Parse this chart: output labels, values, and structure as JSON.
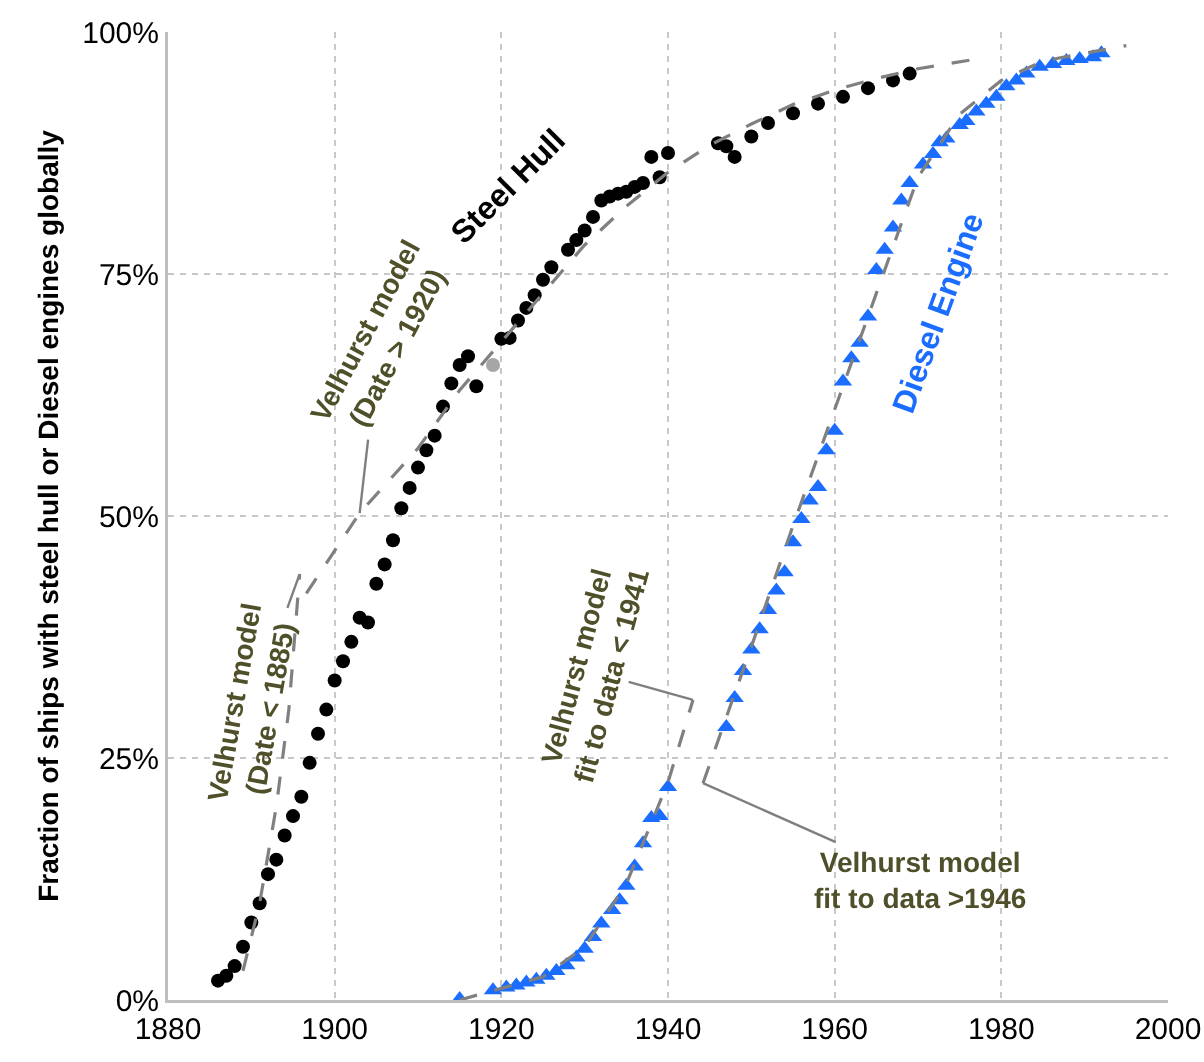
{
  "chart_data": {
    "type": "scatter",
    "ylabel": "Fraction of ships with steel hull or Diesel engines globally",
    "xlim": [
      1880,
      2000
    ],
    "xticks": [
      1880,
      1900,
      1920,
      1940,
      1960,
      1980,
      2000
    ],
    "ylim": [
      0,
      100
    ],
    "yticks": [
      {
        "value": 0,
        "label": "0%"
      },
      {
        "value": 25,
        "label": "25%"
      },
      {
        "value": 50,
        "label": "50%"
      },
      {
        "value": 75,
        "label": "75%"
      },
      {
        "value": 100,
        "label": "100%"
      }
    ],
    "grid": true,
    "legend": false,
    "series": [
      {
        "name": "Steel Hull",
        "color": "#000000",
        "marker": "circle",
        "x": [
          1886,
          1887,
          1888,
          1889,
          1890,
          1891,
          1892,
          1893,
          1894,
          1895,
          1896,
          1897,
          1898,
          1899,
          1900,
          1901,
          1902,
          1903,
          1904,
          1905,
          1906,
          1907,
          1908,
          1909,
          1910,
          1911,
          1912,
          1913,
          1914,
          1915,
          1916,
          1917,
          1920,
          1921,
          1922,
          1923,
          1924,
          1925,
          1926,
          1928,
          1929,
          1930,
          1931,
          1932,
          1933,
          1934,
          1935,
          1936,
          1937,
          1938,
          1939,
          1940,
          1946,
          1947,
          1948,
          1950,
          1952,
          1955,
          1958,
          1961,
          1964,
          1967,
          1969
        ],
        "values": [
          2,
          2.5,
          3.5,
          5.5,
          8,
          10,
          13,
          14.5,
          17,
          19,
          21,
          24.5,
          27.5,
          30,
          33,
          35,
          37,
          39.5,
          39,
          43,
          45,
          47.5,
          50.8,
          52.9,
          55,
          56.8,
          58.3,
          61.3,
          63.7,
          65.6,
          66.5,
          63.4,
          68.3,
          68.4,
          70.2,
          71.5,
          72.8,
          74.4,
          75.7,
          77.5,
          78.5,
          79.5,
          80.9,
          82.6,
          83,
          83.3,
          83.5,
          84,
          84.4,
          87.1,
          85,
          87.5,
          88.5,
          88.2,
          87.1,
          89.2,
          90.6,
          91.6,
          92.6,
          93.3,
          94.2,
          95,
          95.7
        ]
      },
      {
        "color": "#a6a6a6",
        "marker": "circle",
        "x": [
          1919
        ],
        "values": [
          65.6
        ]
      },
      {
        "name": "Diesel Engine",
        "color": "#1a6dff",
        "marker": "triangle",
        "x": [
          1915,
          1919,
          1920.6,
          1921.8,
          1923,
          1924.2,
          1925.4,
          1926.6,
          1927.8,
          1929,
          1930,
          1931,
          1932,
          1933.3,
          1934.2,
          1935,
          1936,
          1937,
          1938,
          1939,
          1940,
          1947,
          1948,
          1949,
          1950,
          1951,
          1952,
          1953,
          1954,
          1955,
          1956,
          1957,
          1958,
          1959,
          1960,
          1961,
          1962,
          1963,
          1964,
          1965,
          1966,
          1967,
          1968,
          1969,
          1970.6,
          1971.8,
          1972.6,
          1973.4,
          1975,
          1975.8,
          1977,
          1978.2,
          1979.4,
          1980.6,
          1981.8,
          1983,
          1984.6,
          1986.2,
          1987.8,
          1989.4,
          1991,
          1992
        ],
        "values": [
          0.1,
          1,
          1.3,
          1.5,
          1.8,
          2.1,
          2.5,
          3,
          3.6,
          4.4,
          5.3,
          6.5,
          7.9,
          9.3,
          10.3,
          11.8,
          13.8,
          16.2,
          18.8,
          19,
          22,
          28.2,
          31.2,
          34,
          36.2,
          38.3,
          40.3,
          42.3,
          44.2,
          47.3,
          49.7,
          51.6,
          53,
          56.8,
          58.8,
          63.9,
          66.3,
          67.9,
          70.6,
          75.4,
          77.5,
          79.8,
          82.6,
          84.4,
          86.3,
          87.4,
          88.6,
          89,
          90.4,
          90.8,
          91.8,
          92.6,
          93.3,
          94.4,
          95,
          95.7,
          96.4,
          96.7,
          97,
          97.2,
          97.4,
          97.8
        ]
      },
      {
        "type": "line",
        "color": "#808080",
        "line_style": "dashed",
        "marker": "none",
        "x": [
          1889,
          1891,
          1893,
          1894.5,
          1895.8
        ],
        "values": [
          3,
          10,
          20,
          30,
          44
        ]
      },
      {
        "type": "line",
        "color": "#808080",
        "line_style": "dashed",
        "marker": "none",
        "x": [
          1896.6,
          1903,
          1910,
          1915,
          1920,
          1925,
          1930,
          1935,
          1940,
          1945,
          1950,
          1955,
          1960,
          1965,
          1970,
          1977
        ],
        "values": [
          42,
          50.3,
          57,
          63,
          68,
          73,
          78,
          82,
          85.5,
          88.3,
          90.5,
          92.5,
          94,
          95.2,
          96.2,
          97.2
        ]
      },
      {
        "type": "line",
        "color": "#808080",
        "line_style": "dashed",
        "marker": "none",
        "x": [
          1915,
          1920,
          1925,
          1930,
          1935,
          1940,
          1943
        ],
        "values": [
          0,
          1.2,
          2.4,
          5.5,
          12,
          22.5,
          31
        ]
      },
      {
        "type": "line",
        "color": "#808080",
        "line_style": "dashed",
        "marker": "none",
        "x": [
          1944.2,
          1950,
          1955,
          1960,
          1965,
          1970,
          1975,
          1980,
          1985,
          1995
        ],
        "values": [
          22.4,
          36.5,
          49,
          61,
          73,
          85,
          91.5,
          95,
          97,
          98.6
        ]
      }
    ],
    "annotations": [
      {
        "text": "Velhurst model\n(Date > 1920)",
        "x": 1903,
        "y": 50.3
      },
      {
        "text": "Velhurst model\n(Date < 1885)",
        "x": 1895.8,
        "y": 44
      },
      {
        "text": "Velhurst model\nfit to data < 1941",
        "x": 1943,
        "y": 31
      },
      {
        "text": "Velhurst model\nfit to data >1946",
        "x": 1944.2,
        "y": 22.4
      }
    ]
  }
}
